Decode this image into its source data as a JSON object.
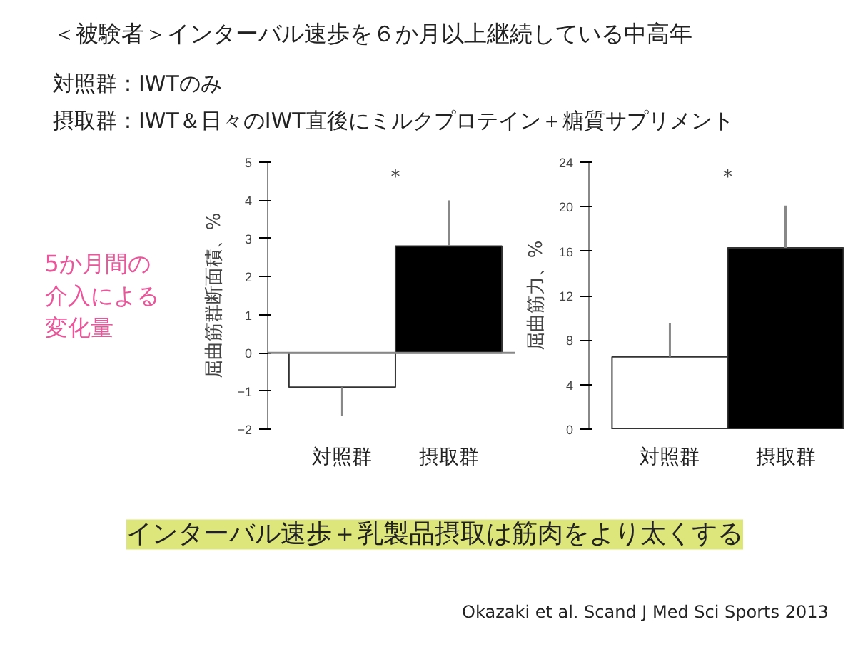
{
  "chart_data": [
    {
      "type": "other",
      "title": "＜被験者＞インターバル速歩を６か月以上継続している中高年",
      "annotations": [
        "対照群：IWTのみ",
        "摂取群：IWT＆日々のIWT直後にミルクプロテイン＋糖質サプリメント",
        "5か月間の",
        "介入による",
        "変化量"
      ]
    },
    {
      "type": "bar",
      "categories": [
        "対照群",
        "摂取群"
      ],
      "values": [
        -0.9,
        2.8
      ],
      "colors": [
        "#ffffff",
        "#000000"
      ],
      "errors": [
        [
          -1.65,
          -0.9
        ],
        [
          2.8,
          4.0
        ]
      ],
      "ylim": [
        -2,
        5
      ],
      "yticks": [
        -2,
        -1,
        0,
        1,
        2,
        3,
        4,
        5
      ],
      "ylabel": "屈曲筋群断面積、%",
      "ref_lines": [
        {
          "axis": "y",
          "value": 0,
          "color": "#888888"
        }
      ],
      "annotations": [
        "*"
      ]
    },
    {
      "type": "bar",
      "categories": [
        "対照群",
        "摂取群"
      ],
      "values": [
        6.5,
        16.3
      ],
      "colors": [
        "#ffffff",
        "#000000"
      ],
      "errors": [
        [
          6.5,
          9.5
        ],
        [
          16.3,
          20.1
        ]
      ],
      "ylim": [
        0,
        24
      ],
      "yticks": [
        0,
        4,
        8,
        12,
        16,
        20,
        24
      ],
      "ylabel": "屈曲筋力、%",
      "annotations": [
        "*"
      ]
    },
    {
      "type": "other",
      "annotations": [
        "インターバル速歩＋乳製品摂取は筋肉をより太くする",
        "Okazaki et al. Scand J Med Sci Sports  2013"
      ]
    }
  ]
}
